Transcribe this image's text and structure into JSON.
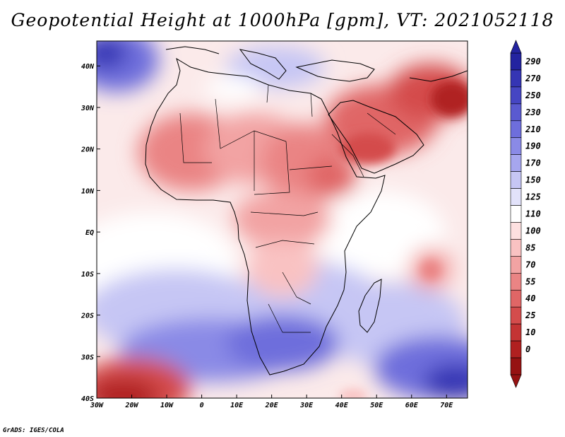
{
  "title": "Geopotential Height at 1000hPa [gpm], VT: 2021052118",
  "credit": "GrADS: IGES/COLA",
  "map": {
    "lon_range": [
      -30,
      76
    ],
    "lat_range": [
      -40,
      46
    ],
    "lon_ticks": [
      "30W",
      "20W",
      "10W",
      "0",
      "10E",
      "20E",
      "30E",
      "40E",
      "50E",
      "60E",
      "70E"
    ],
    "lon_tick_values": [
      -30,
      -20,
      -10,
      0,
      10,
      20,
      30,
      40,
      50,
      60,
      70
    ],
    "lat_ticks": [
      "40N",
      "30N",
      "20N",
      "10N",
      "EQ",
      "10S",
      "20S",
      "30S",
      "40S"
    ],
    "lat_tick_values": [
      40,
      30,
      20,
      10,
      0,
      -10,
      -20,
      -30,
      -40
    ]
  },
  "colorbar": {
    "labels": [
      "290",
      "270",
      "250",
      "230",
      "210",
      "190",
      "170",
      "150",
      "125",
      "110",
      "100",
      "85",
      "70",
      "55",
      "40",
      "25",
      "10",
      "0"
    ],
    "colors": [
      "#2323a0",
      "#3535b4",
      "#4646c3",
      "#5a5ad0",
      "#6e6edc",
      "#8a8ae6",
      "#a6a6ee",
      "#c6c6f4",
      "#e2e2fa",
      "#ffffff",
      "#fde0e0",
      "#f9c2c2",
      "#f2a3a3",
      "#ea8484",
      "#e06666",
      "#d44c4c",
      "#c43434",
      "#b02020",
      "#961212"
    ]
  }
}
